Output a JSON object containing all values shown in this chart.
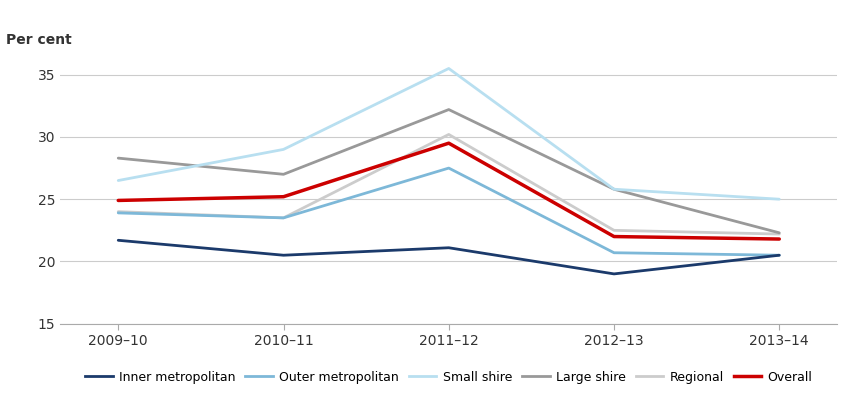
{
  "x_labels": [
    "2009–10",
    "2010–11",
    "2011–12",
    "2012–13",
    "2013–14"
  ],
  "series": [
    {
      "name": "Inner metropolitan",
      "values": [
        21.7,
        20.5,
        21.1,
        19.0,
        20.5
      ],
      "color": "#1b3a6b",
      "linewidth": 2.0,
      "zorder": 5
    },
    {
      "name": "Outer metropolitan",
      "values": [
        23.9,
        23.5,
        27.5,
        20.7,
        20.5
      ],
      "color": "#7db8d8",
      "linewidth": 2.0,
      "zorder": 4
    },
    {
      "name": "Small shire",
      "values": [
        26.5,
        29.0,
        35.5,
        25.8,
        25.0
      ],
      "color": "#b8dff0",
      "linewidth": 2.0,
      "zorder": 3
    },
    {
      "name": "Large shire",
      "values": [
        28.3,
        27.0,
        32.2,
        25.8,
        22.3
      ],
      "color": "#999999",
      "linewidth": 2.0,
      "zorder": 2
    },
    {
      "name": "Regional",
      "values": [
        24.0,
        23.5,
        30.2,
        22.5,
        22.2
      ],
      "color": "#cccccc",
      "linewidth": 2.0,
      "zorder": 1
    },
    {
      "name": "Overall",
      "values": [
        24.9,
        25.2,
        29.5,
        22.0,
        21.8
      ],
      "color": "#cc0000",
      "linewidth": 2.5,
      "zorder": 6
    }
  ],
  "top_label": "Per cent",
  "ylim": [
    15,
    37
  ],
  "yticks": [
    15,
    20,
    25,
    30,
    35
  ],
  "background_color": "#ffffff",
  "grid_color": "#cccccc",
  "spine_color": "#aaaaaa"
}
